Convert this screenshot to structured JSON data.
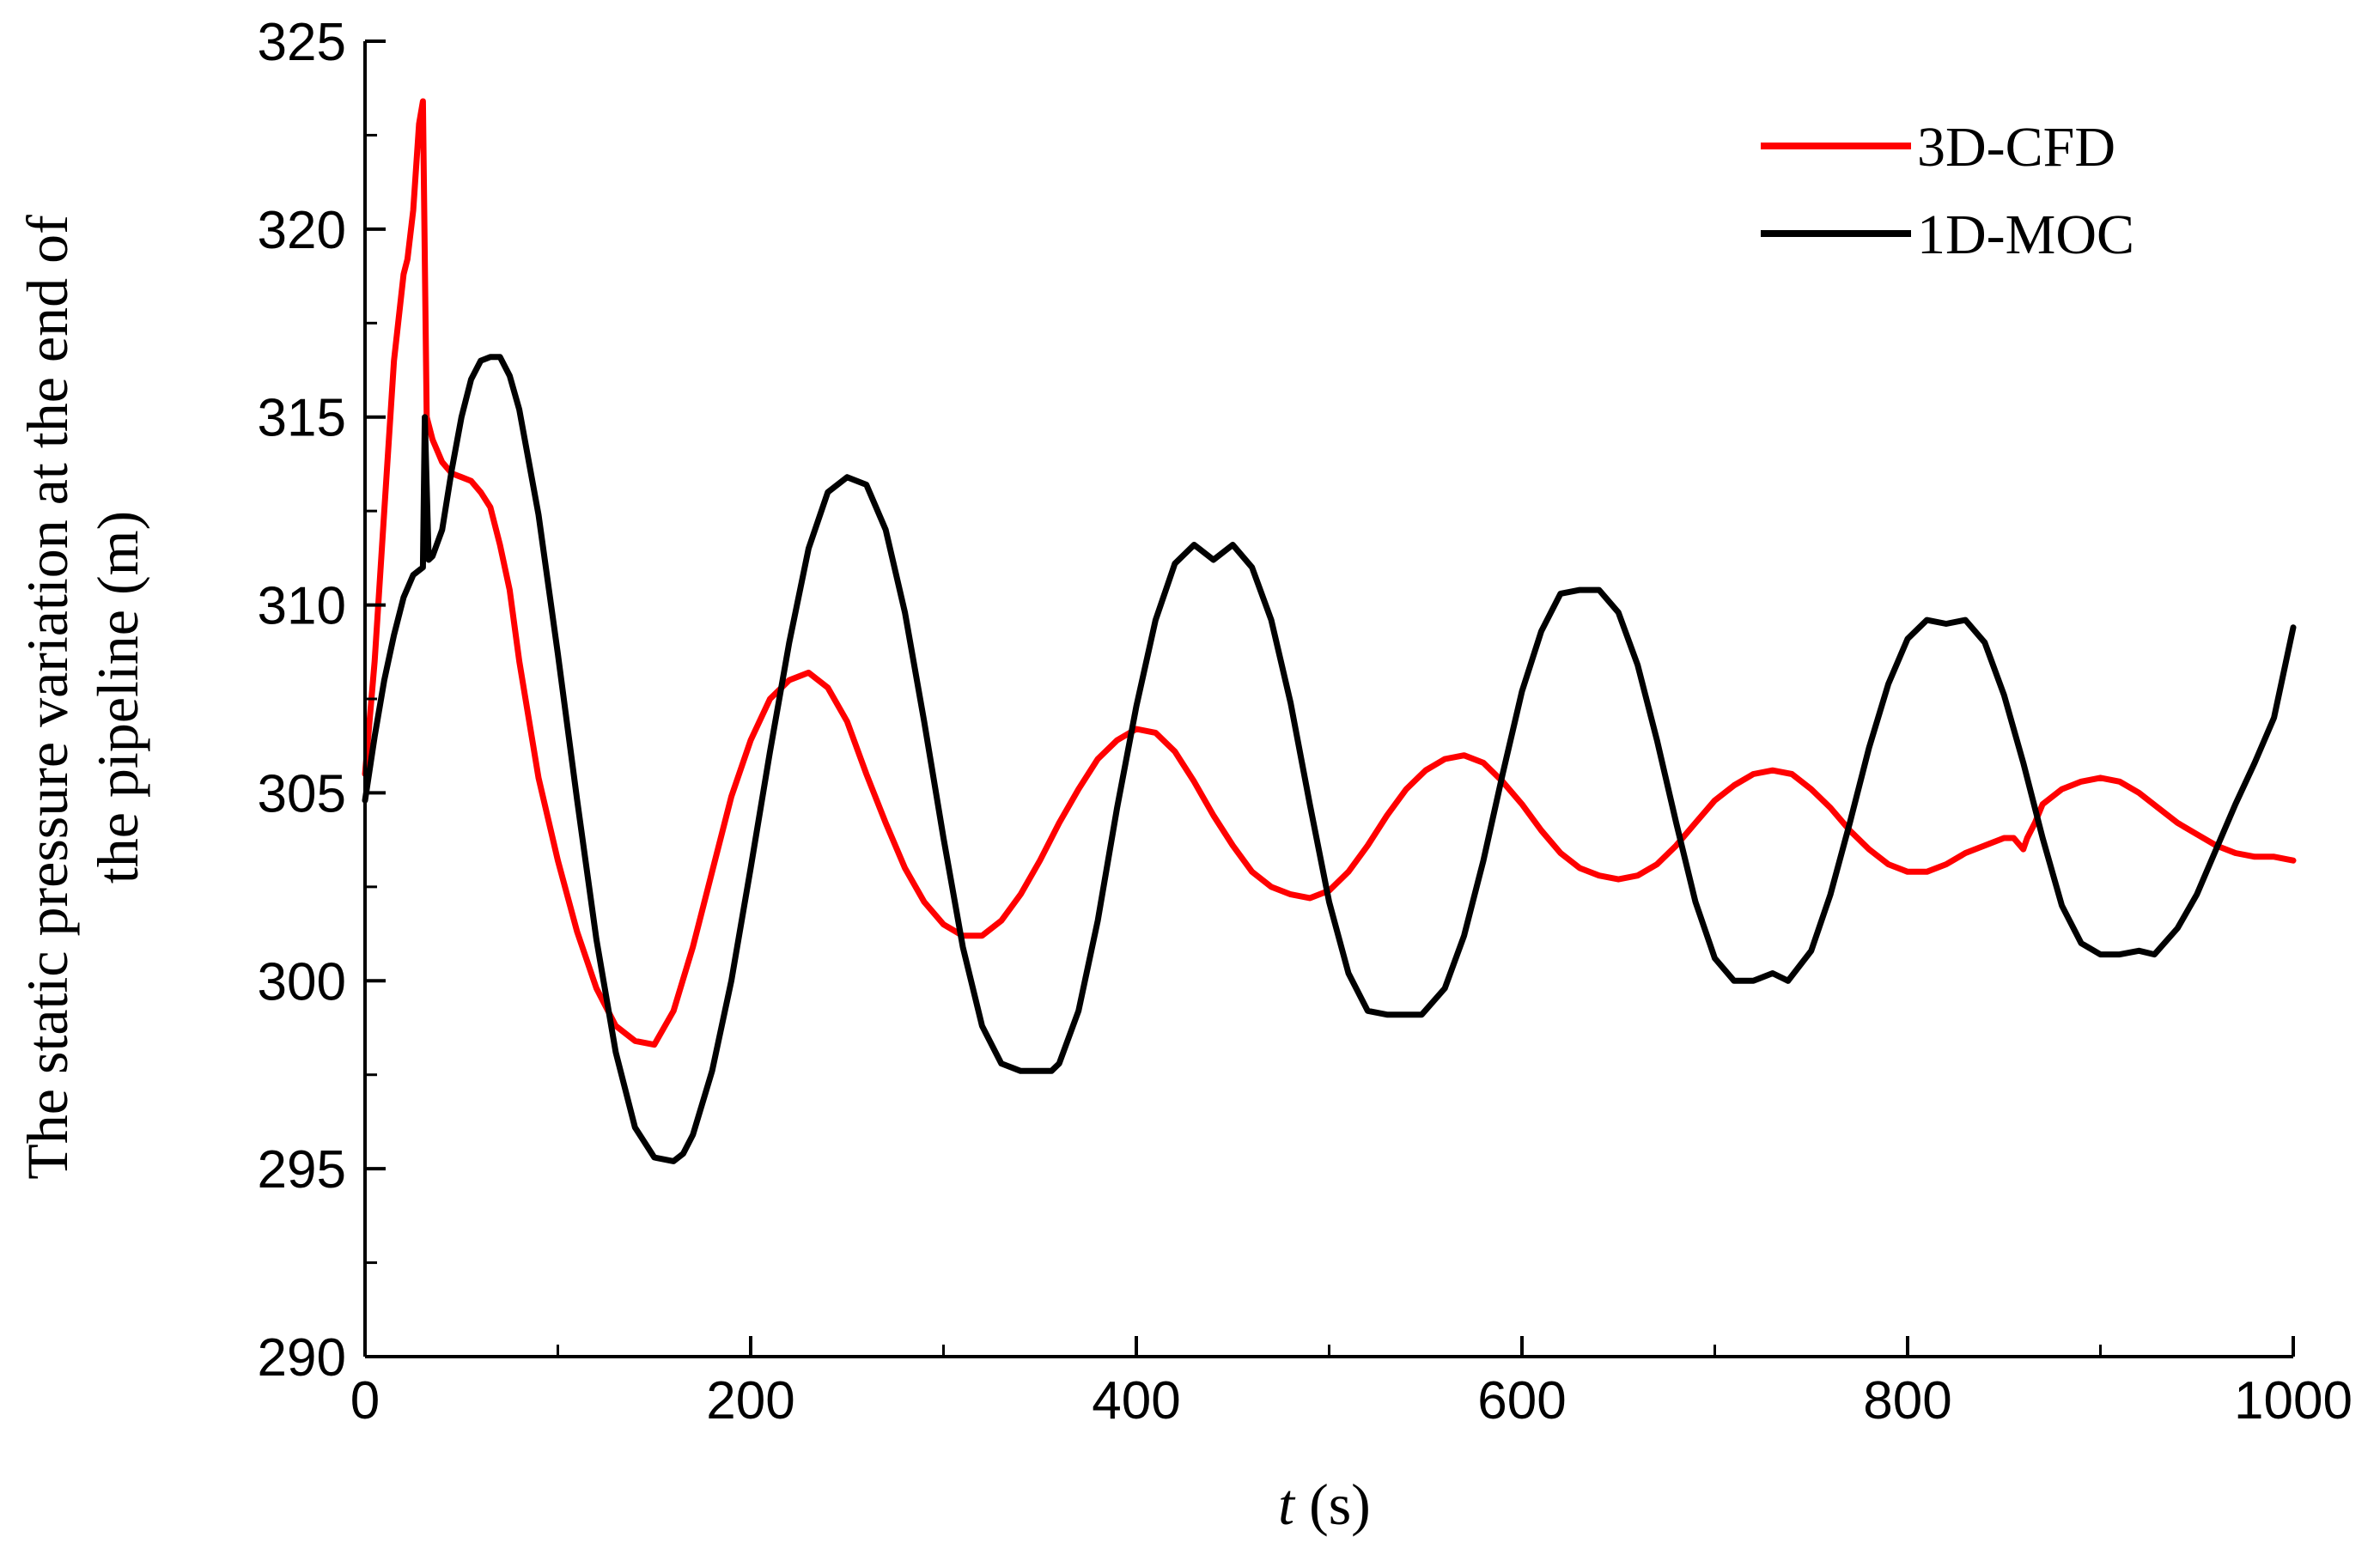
{
  "chart_data": {
    "type": "line",
    "title": "",
    "xlabel_var": "t",
    "xlabel_unit": " (s)",
    "ylabel_line1": "The static pressure variation at the end of",
    "ylabel_line2": "the pipeline (m)",
    "xlim": [
      0,
      1000
    ],
    "ylim": [
      290,
      325
    ],
    "x_ticks": [
      0,
      200,
      400,
      600,
      800,
      1000
    ],
    "x_tick_labels": [
      "0",
      "200",
      "400",
      "600",
      "800",
      "1000"
    ],
    "x_minor_ticks": [
      100,
      300,
      500,
      700,
      900
    ],
    "y_ticks": [
      290,
      295,
      300,
      305,
      310,
      315,
      320,
      325
    ],
    "y_tick_labels": [
      "290",
      "295",
      "300",
      "305",
      "310",
      "315",
      "320",
      "325"
    ],
    "y_minor_ticks": [
      292.5,
      297.5,
      302.5,
      307.5,
      312.5,
      317.5,
      322.5
    ],
    "grid": false,
    "legend_position": "top-right",
    "series": [
      {
        "name": "3D-CFD",
        "color": "#ff0000",
        "x": [
          0,
          5,
          10,
          15,
          20,
          22,
          25,
          28,
          30,
          32,
          35,
          40,
          45,
          50,
          55,
          60,
          65,
          70,
          75,
          80,
          90,
          100,
          110,
          120,
          130,
          140,
          150,
          160,
          170,
          180,
          190,
          200,
          210,
          220,
          230,
          240,
          250,
          260,
          270,
          280,
          290,
          300,
          310,
          320,
          330,
          340,
          350,
          360,
          370,
          380,
          390,
          400,
          410,
          420,
          430,
          440,
          450,
          460,
          470,
          480,
          490,
          500,
          510,
          520,
          530,
          540,
          550,
          560,
          570,
          580,
          590,
          600,
          610,
          620,
          630,
          640,
          650,
          660,
          670,
          680,
          690,
          700,
          710,
          720,
          730,
          740,
          750,
          760,
          770,
          780,
          790,
          800,
          810,
          820,
          830,
          840,
          850,
          855,
          860,
          862,
          866,
          870,
          880,
          890,
          900,
          910,
          920,
          930,
          940,
          950,
          960,
          970,
          980,
          990,
          1000
        ],
        "y": [
          305.5,
          308.5,
          312.5,
          316.5,
          318.8,
          319.2,
          320.5,
          322.8,
          323.4,
          315.0,
          314.4,
          313.8,
          313.5,
          313.4,
          313.3,
          313.0,
          312.6,
          311.6,
          310.4,
          308.5,
          305.4,
          303.2,
          301.3,
          299.8,
          298.8,
          298.4,
          298.3,
          299.2,
          300.9,
          302.9,
          304.9,
          306.4,
          307.5,
          308.0,
          308.2,
          307.8,
          306.9,
          305.5,
          304.2,
          303.0,
          302.1,
          301.5,
          301.2,
          301.2,
          301.6,
          302.3,
          303.2,
          304.2,
          305.1,
          305.9,
          306.4,
          306.7,
          306.6,
          306.1,
          305.3,
          304.4,
          303.6,
          302.9,
          302.5,
          302.3,
          302.2,
          302.4,
          302.9,
          303.6,
          304.4,
          305.1,
          305.6,
          305.9,
          306.0,
          305.8,
          305.3,
          304.7,
          304.0,
          303.4,
          303.0,
          302.8,
          302.7,
          302.8,
          303.1,
          303.6,
          304.2,
          304.8,
          305.2,
          305.5,
          305.6,
          305.5,
          305.1,
          304.6,
          304.0,
          303.5,
          303.1,
          302.9,
          302.9,
          303.1,
          303.4,
          303.6,
          303.8,
          303.8,
          303.5,
          303.8,
          304.2,
          304.7,
          305.1,
          305.3,
          305.4,
          305.3,
          305.0,
          304.6,
          304.2,
          303.9,
          303.6,
          303.4,
          303.3,
          303.3,
          303.2
        ]
      },
      {
        "name": "1D-MOC",
        "color": "#000000",
        "x": [
          0,
          5,
          10,
          15,
          20,
          25,
          30,
          31,
          33,
          35,
          40,
          45,
          50,
          55,
          60,
          65,
          70,
          75,
          80,
          90,
          100,
          110,
          120,
          130,
          140,
          150,
          160,
          165,
          170,
          180,
          190,
          200,
          210,
          220,
          230,
          240,
          250,
          260,
          270,
          280,
          290,
          300,
          310,
          320,
          330,
          340,
          350,
          356,
          360,
          370,
          380,
          390,
          400,
          410,
          420,
          430,
          440,
          450,
          460,
          470,
          480,
          490,
          500,
          510,
          520,
          530,
          540,
          548,
          560,
          570,
          580,
          590,
          600,
          610,
          620,
          630,
          640,
          650,
          660,
          670,
          680,
          690,
          700,
          710,
          720,
          730,
          738,
          750,
          760,
          770,
          780,
          790,
          800,
          810,
          820,
          830,
          840,
          850,
          860,
          870,
          880,
          890,
          900,
          910,
          920,
          928,
          940,
          950,
          960,
          970,
          980,
          990,
          1000
        ],
        "y": [
          304.8,
          306.5,
          308.0,
          309.2,
          310.2,
          310.8,
          311.0,
          315.0,
          311.2,
          311.3,
          312.0,
          313.6,
          315.0,
          316.0,
          316.5,
          316.6,
          316.6,
          316.1,
          315.2,
          312.4,
          308.7,
          304.8,
          301.1,
          298.1,
          296.1,
          295.3,
          295.2,
          295.4,
          295.9,
          297.6,
          300.0,
          303.0,
          306.1,
          309.0,
          311.5,
          313.0,
          313.4,
          313.2,
          312.0,
          309.8,
          306.9,
          303.8,
          300.9,
          298.8,
          297.8,
          297.6,
          297.6,
          297.6,
          297.8,
          299.2,
          301.6,
          304.6,
          307.3,
          309.6,
          311.1,
          311.6,
          311.2,
          311.6,
          311.0,
          309.6,
          307.4,
          304.7,
          302.1,
          300.2,
          299.2,
          299.1,
          299.1,
          299.1,
          299.8,
          301.2,
          303.2,
          305.5,
          307.7,
          309.3,
          310.3,
          310.4,
          310.4,
          309.8,
          308.4,
          306.4,
          304.2,
          302.1,
          300.6,
          300.0,
          300.0,
          300.2,
          300.0,
          300.8,
          302.3,
          304.2,
          306.2,
          307.9,
          309.1,
          309.6,
          309.5,
          309.6,
          309.0,
          307.6,
          305.8,
          303.8,
          302.0,
          301.0,
          300.7,
          300.7,
          300.8,
          300.7,
          301.4,
          302.3,
          303.5,
          304.7,
          305.8,
          307.0,
          309.4
        ]
      }
    ]
  }
}
